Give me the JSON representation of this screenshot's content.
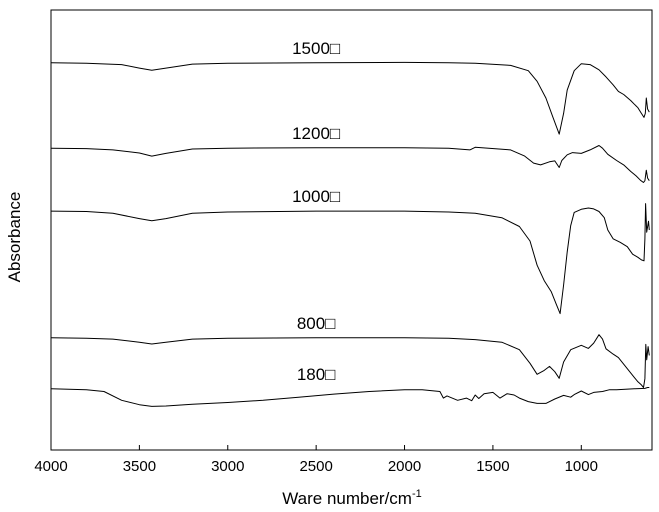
{
  "chart_data": {
    "type": "line",
    "title": "",
    "xlabel": "Ware number/cm",
    "xlabel_sup": "-1",
    "ylabel": "Absorbance",
    "xlim": [
      4000,
      600
    ],
    "x_reversed": true,
    "xticks": [
      4000,
      3500,
      3000,
      2500,
      2000,
      1500,
      1000
    ],
    "grid": false,
    "legend": "none",
    "line_color": "#000000",
    "series": [
      {
        "name": "1500□",
        "label": "1500□",
        "baseline": 0.88,
        "points": [
          [
            4000,
            0.88
          ],
          [
            3800,
            0.879
          ],
          [
            3600,
            0.876
          ],
          [
            3500,
            0.868
          ],
          [
            3430,
            0.863
          ],
          [
            3350,
            0.868
          ],
          [
            3200,
            0.877
          ],
          [
            3000,
            0.879
          ],
          [
            2500,
            0.88
          ],
          [
            2000,
            0.881
          ],
          [
            1750,
            0.88
          ],
          [
            1600,
            0.879
          ],
          [
            1400,
            0.874
          ],
          [
            1300,
            0.862
          ],
          [
            1250,
            0.838
          ],
          [
            1200,
            0.8
          ],
          [
            1160,
            0.756
          ],
          [
            1125,
            0.718
          ],
          [
            1100,
            0.765
          ],
          [
            1080,
            0.818
          ],
          [
            1040,
            0.862
          ],
          [
            1000,
            0.878
          ],
          [
            950,
            0.876
          ],
          [
            900,
            0.864
          ],
          [
            860,
            0.848
          ],
          [
            820,
            0.83
          ],
          [
            790,
            0.815
          ],
          [
            760,
            0.808
          ],
          [
            720,
            0.794
          ],
          [
            700,
            0.786
          ],
          [
            680,
            0.778
          ],
          [
            660,
            0.765
          ],
          [
            645,
            0.756
          ],
          [
            638,
            0.765
          ],
          [
            632,
            0.8
          ],
          [
            625,
            0.775
          ],
          [
            615,
            0.768
          ]
        ]
      },
      {
        "name": "1200□",
        "label": "1200□",
        "baseline": 0.686,
        "points": [
          [
            4000,
            0.686
          ],
          [
            3800,
            0.685
          ],
          [
            3650,
            0.682
          ],
          [
            3500,
            0.675
          ],
          [
            3430,
            0.668
          ],
          [
            3350,
            0.674
          ],
          [
            3200,
            0.684
          ],
          [
            3000,
            0.686
          ],
          [
            2500,
            0.687
          ],
          [
            2000,
            0.687
          ],
          [
            1750,
            0.686
          ],
          [
            1630,
            0.682
          ],
          [
            1600,
            0.688
          ],
          [
            1400,
            0.682
          ],
          [
            1320,
            0.668
          ],
          [
            1270,
            0.652
          ],
          [
            1230,
            0.648
          ],
          [
            1180,
            0.655
          ],
          [
            1150,
            0.657
          ],
          [
            1125,
            0.642
          ],
          [
            1110,
            0.658
          ],
          [
            1080,
            0.671
          ],
          [
            1050,
            0.676
          ],
          [
            1000,
            0.674
          ],
          [
            950,
            0.682
          ],
          [
            900,
            0.692
          ],
          [
            880,
            0.686
          ],
          [
            850,
            0.672
          ],
          [
            800,
            0.658
          ],
          [
            760,
            0.648
          ],
          [
            720,
            0.633
          ],
          [
            690,
            0.623
          ],
          [
            665,
            0.613
          ],
          [
            648,
            0.608
          ],
          [
            640,
            0.612
          ],
          [
            632,
            0.636
          ],
          [
            625,
            0.618
          ],
          [
            615,
            0.612
          ]
        ]
      },
      {
        "name": "1000□",
        "label": "1000□",
        "baseline": 0.543,
        "points": [
          [
            4000,
            0.543
          ],
          [
            3800,
            0.542
          ],
          [
            3650,
            0.538
          ],
          [
            3500,
            0.526
          ],
          [
            3430,
            0.521
          ],
          [
            3350,
            0.526
          ],
          [
            3200,
            0.538
          ],
          [
            3000,
            0.541
          ],
          [
            2500,
            0.543
          ],
          [
            2000,
            0.543
          ],
          [
            1750,
            0.541
          ],
          [
            1600,
            0.538
          ],
          [
            1450,
            0.528
          ],
          [
            1350,
            0.508
          ],
          [
            1290,
            0.475
          ],
          [
            1250,
            0.42
          ],
          [
            1210,
            0.385
          ],
          [
            1170,
            0.36
          ],
          [
            1140,
            0.33
          ],
          [
            1120,
            0.31
          ],
          [
            1100,
            0.375
          ],
          [
            1080,
            0.45
          ],
          [
            1060,
            0.51
          ],
          [
            1040,
            0.54
          ],
          [
            1000,
            0.547
          ],
          [
            960,
            0.55
          ],
          [
            930,
            0.548
          ],
          [
            900,
            0.542
          ],
          [
            870,
            0.528
          ],
          [
            850,
            0.5
          ],
          [
            820,
            0.48
          ],
          [
            780,
            0.472
          ],
          [
            740,
            0.462
          ],
          [
            710,
            0.445
          ],
          [
            680,
            0.438
          ],
          [
            660,
            0.432
          ],
          [
            645,
            0.43
          ],
          [
            640,
            0.48
          ],
          [
            636,
            0.56
          ],
          [
            630,
            0.495
          ],
          [
            620,
            0.52
          ],
          [
            615,
            0.5
          ]
        ]
      },
      {
        "name": "800□",
        "label": "800□",
        "baseline": 0.255,
        "points": [
          [
            4000,
            0.255
          ],
          [
            3800,
            0.254
          ],
          [
            3650,
            0.252
          ],
          [
            3500,
            0.245
          ],
          [
            3430,
            0.241
          ],
          [
            3350,
            0.245
          ],
          [
            3200,
            0.252
          ],
          [
            3000,
            0.254
          ],
          [
            2500,
            0.255
          ],
          [
            2000,
            0.255
          ],
          [
            1750,
            0.254
          ],
          [
            1600,
            0.251
          ],
          [
            1450,
            0.245
          ],
          [
            1350,
            0.228
          ],
          [
            1290,
            0.197
          ],
          [
            1250,
            0.172
          ],
          [
            1210,
            0.181
          ],
          [
            1180,
            0.19
          ],
          [
            1150,
            0.178
          ],
          [
            1125,
            0.163
          ],
          [
            1100,
            0.2
          ],
          [
            1060,
            0.228
          ],
          [
            1000,
            0.238
          ],
          [
            960,
            0.231
          ],
          [
            930,
            0.243
          ],
          [
            900,
            0.262
          ],
          [
            880,
            0.252
          ],
          [
            860,
            0.23
          ],
          [
            820,
            0.218
          ],
          [
            790,
            0.21
          ],
          [
            760,
            0.195
          ],
          [
            730,
            0.18
          ],
          [
            700,
            0.165
          ],
          [
            680,
            0.155
          ],
          [
            660,
            0.148
          ],
          [
            648,
            0.142
          ],
          [
            640,
            0.162
          ],
          [
            635,
            0.24
          ],
          [
            630,
            0.205
          ],
          [
            622,
            0.235
          ],
          [
            615,
            0.215
          ]
        ]
      },
      {
        "name": "180□",
        "label": "180□",
        "baseline": 0.139,
        "points": [
          [
            4000,
            0.139
          ],
          [
            3800,
            0.137
          ],
          [
            3700,
            0.133
          ],
          [
            3600,
            0.113
          ],
          [
            3500,
            0.103
          ],
          [
            3430,
            0.099
          ],
          [
            3350,
            0.1
          ],
          [
            3200,
            0.104
          ],
          [
            3000,
            0.108
          ],
          [
            2800,
            0.113
          ],
          [
            2600,
            0.12
          ],
          [
            2400,
            0.127
          ],
          [
            2200,
            0.133
          ],
          [
            2000,
            0.137
          ],
          [
            1900,
            0.137
          ],
          [
            1800,
            0.133
          ],
          [
            1780,
            0.118
          ],
          [
            1760,
            0.123
          ],
          [
            1700,
            0.113
          ],
          [
            1650,
            0.118
          ],
          [
            1620,
            0.112
          ],
          [
            1600,
            0.125
          ],
          [
            1580,
            0.117
          ],
          [
            1550,
            0.128
          ],
          [
            1500,
            0.131
          ],
          [
            1460,
            0.118
          ],
          [
            1420,
            0.128
          ],
          [
            1380,
            0.125
          ],
          [
            1350,
            0.118
          ],
          [
            1300,
            0.11
          ],
          [
            1250,
            0.106
          ],
          [
            1200,
            0.106
          ],
          [
            1150,
            0.116
          ],
          [
            1100,
            0.124
          ],
          [
            1060,
            0.12
          ],
          [
            1040,
            0.126
          ],
          [
            1000,
            0.134
          ],
          [
            960,
            0.126
          ],
          [
            930,
            0.131
          ],
          [
            880,
            0.133
          ],
          [
            840,
            0.137
          ],
          [
            800,
            0.137
          ],
          [
            700,
            0.139
          ],
          [
            640,
            0.14
          ],
          [
            625,
            0.142
          ],
          [
            615,
            0.142
          ]
        ]
      }
    ]
  }
}
